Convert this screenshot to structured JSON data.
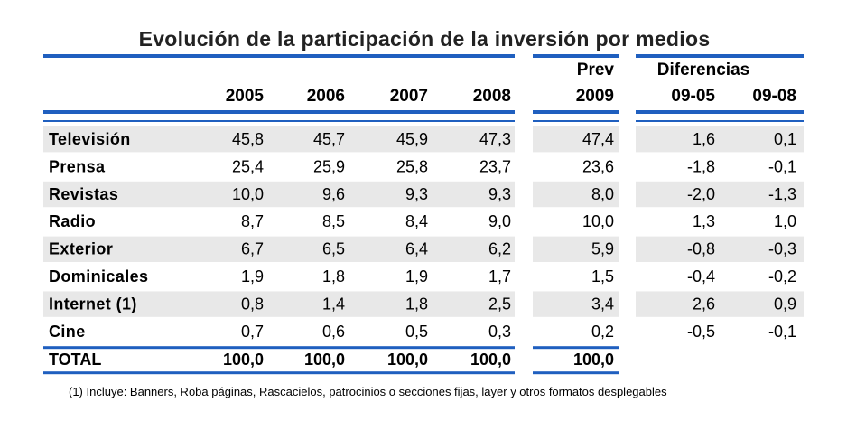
{
  "title": "Evolución de la participación de la inversión por medios",
  "footnote": "(1) Incluye: Banners, Roba páginas, Rascacielos, patrocinios o secciones fijas, layer y otros formatos desplegables",
  "colors": {
    "accent_blue": "#1f5fbf",
    "row_shade": "#e8e8e8"
  },
  "chart_data": {
    "type": "table",
    "title": "Evolución de la participación de la inversión por medios",
    "header_groups": {
      "prev": "Prev",
      "diferencias": "Diferencias"
    },
    "columns": [
      "2005",
      "2006",
      "2007",
      "2008",
      "2009",
      "09-05",
      "09-08"
    ],
    "rows": [
      {
        "label": "Televisión",
        "values": [
          "45,8",
          "45,7",
          "45,9",
          "47,3",
          "47,4",
          "1,6",
          "0,1"
        ]
      },
      {
        "label": "Prensa",
        "values": [
          "25,4",
          "25,9",
          "25,8",
          "23,7",
          "23,6",
          "-1,8",
          "-0,1"
        ]
      },
      {
        "label": "Revistas",
        "values": [
          "10,0",
          "9,6",
          "9,3",
          "9,3",
          "8,0",
          "-2,0",
          "-1,3"
        ]
      },
      {
        "label": "Radio",
        "values": [
          "8,7",
          "8,5",
          "8,4",
          "9,0",
          "10,0",
          "1,3",
          "1,0"
        ]
      },
      {
        "label": "Exterior",
        "values": [
          "6,7",
          "6,5",
          "6,4",
          "6,2",
          "5,9",
          "-0,8",
          "-0,3"
        ]
      },
      {
        "label": "Dominicales",
        "values": [
          "1,9",
          "1,8",
          "1,9",
          "1,7",
          "1,5",
          "-0,4",
          "-0,2"
        ]
      },
      {
        "label": "Internet (1)",
        "values": [
          "0,8",
          "1,4",
          "1,8",
          "2,5",
          "3,4",
          "2,6",
          "0,9"
        ]
      },
      {
        "label": "Cine",
        "values": [
          "0,7",
          "0,6",
          "0,5",
          "0,3",
          "0,2",
          "-0,5",
          "-0,1"
        ]
      }
    ],
    "total": {
      "label": "TOTAL",
      "values": [
        "100,0",
        "100,0",
        "100,0",
        "100,0",
        "100,0",
        "",
        ""
      ]
    }
  }
}
